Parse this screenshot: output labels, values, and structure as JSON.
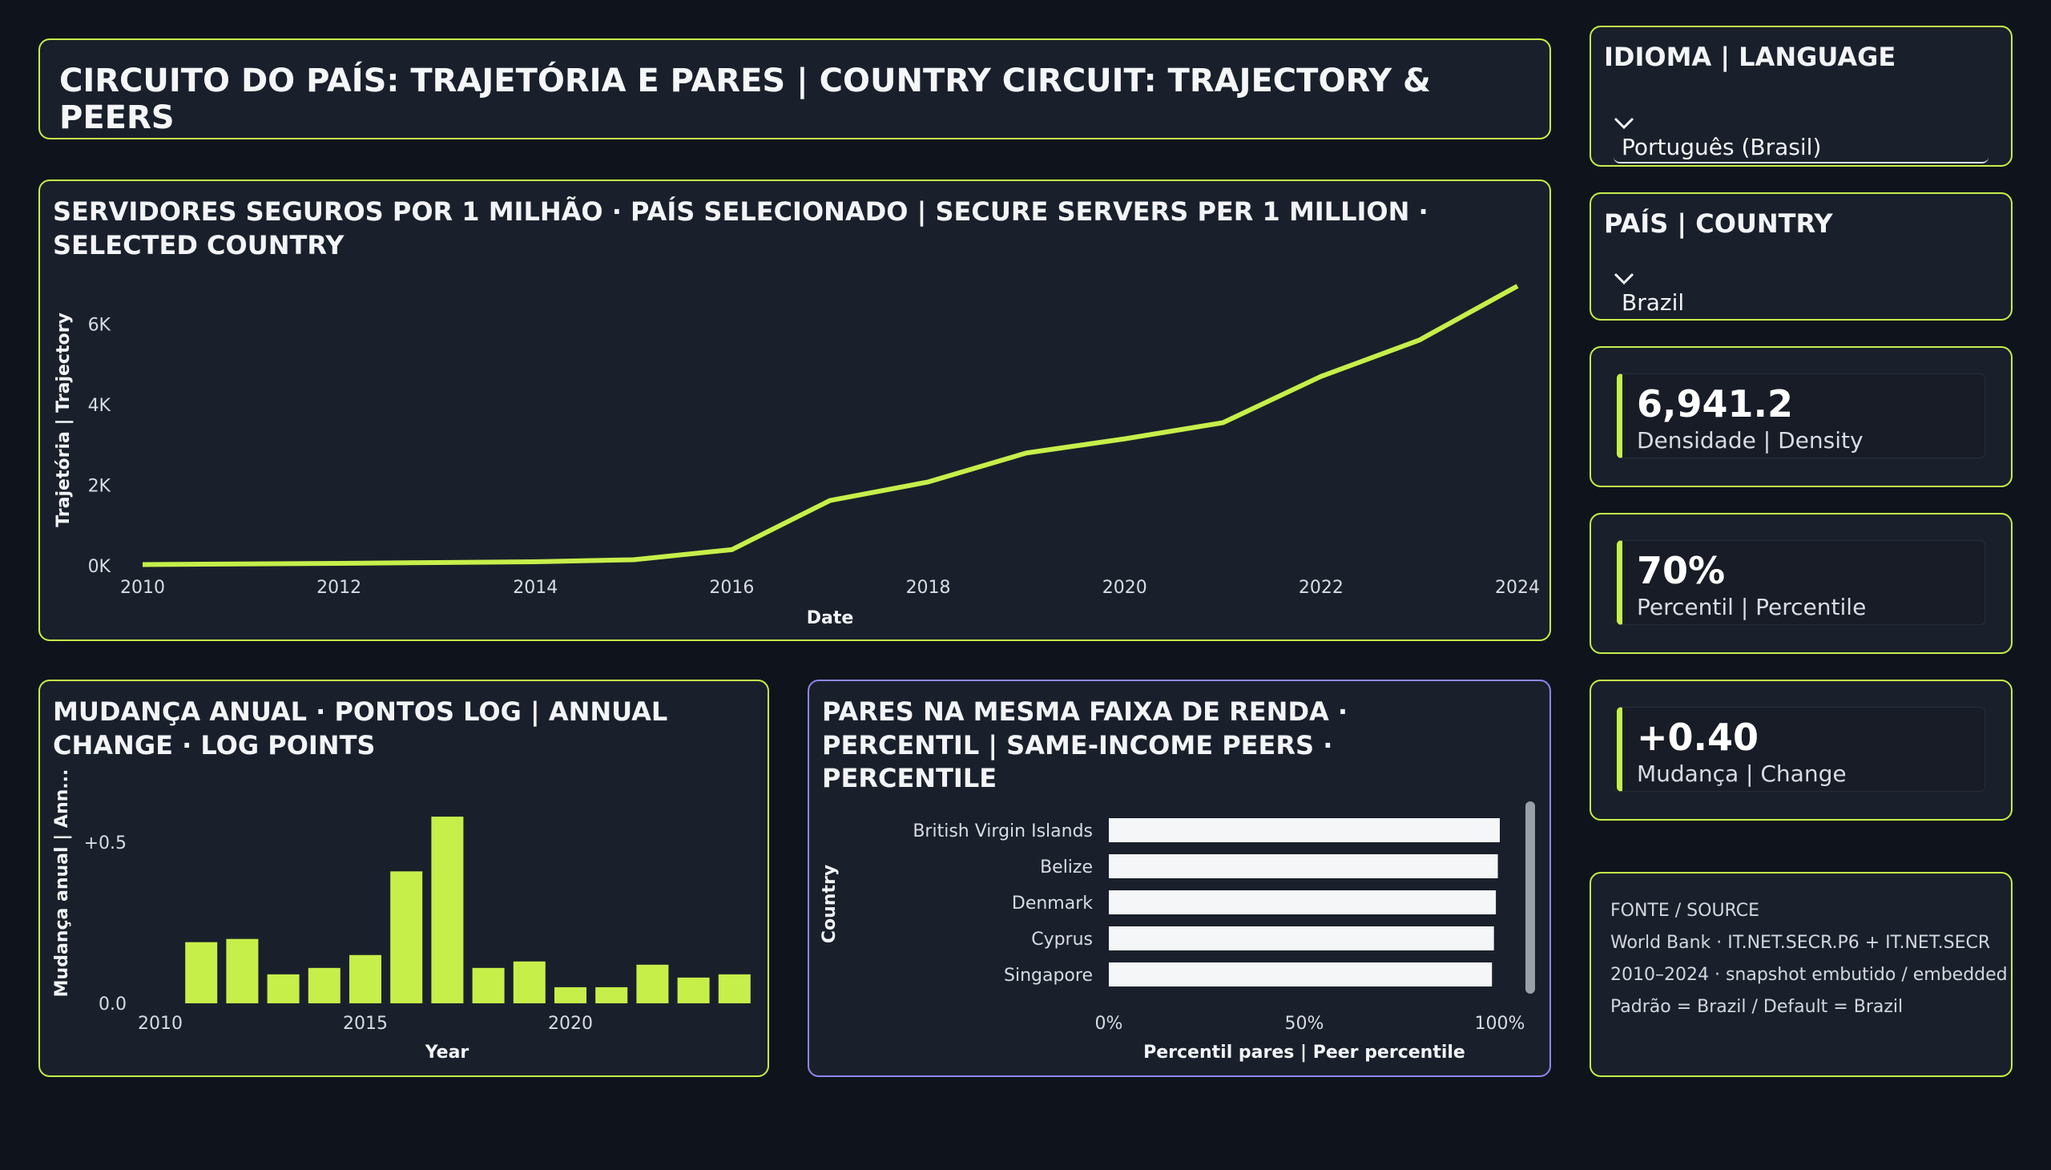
{
  "header": {
    "title": "CIRCUITO DO PAÍS: TRAJETÓRIA E PARES | COUNTRY CIRCUIT: TRAJECTORY & PEERS"
  },
  "language_slicer": {
    "label": "IDIOMA | LANGUAGE",
    "value": "Português (Brasil)"
  },
  "country_slicer": {
    "label": "PAÍS | COUNTRY",
    "value": "Brazil"
  },
  "kpis": [
    {
      "value": "6,941.2",
      "label": "Densidade | Density"
    },
    {
      "value": "70%",
      "label": "Percentil | Percentile"
    },
    {
      "value": "+0.40",
      "label": "Mudança | Change"
    }
  ],
  "source": {
    "heading": "FONTE / SOURCE",
    "line1": "World Bank · IT.NET.SECR.P6 + IT.NET.SECR",
    "line2": "2010–2024 · snapshot embutido / embedded",
    "line3": "Padrão = Brazil / Default = Brazil"
  },
  "colors": {
    "accent": "#c6ef4a",
    "peer_border": "#8f86ef",
    "background": "#0f141c",
    "card": "#1a202b",
    "bar_peer": "#f4f6f8"
  },
  "chart_data": [
    {
      "type": "line",
      "title": "SERVIDORES SEGUROS POR 1 MILHÃO · PAÍS SELECIONADO | SECURE SERVERS PER 1 MILLION · SELECTED COUNTRY",
      "xlabel": "Date",
      "ylabel": "Trajetória | Trajectory",
      "x": [
        2010,
        2011,
        2012,
        2013,
        2014,
        2015,
        2016,
        2017,
        2018,
        2019,
        2020,
        2021,
        2022,
        2023,
        2024
      ],
      "values": [
        30,
        45,
        60,
        80,
        100,
        150,
        400,
        1620,
        2080,
        2800,
        3150,
        3550,
        4700,
        5600,
        6941.2
      ],
      "xticks": [
        "2010",
        "2012",
        "2014",
        "2016",
        "2018",
        "2020",
        "2022",
        "2024"
      ],
      "yticks": [
        "0K",
        "2K",
        "4K",
        "6K"
      ],
      "ylim": [
        0,
        7200
      ],
      "grid": false
    },
    {
      "type": "bar",
      "title": "MUDANÇA ANUAL · PONTOS LOG | ANNUAL CHANGE · LOG POINTS",
      "xlabel": "Year",
      "ylabel": "Mudança anual | Ann...",
      "x": [
        2011,
        2012,
        2013,
        2014,
        2015,
        2016,
        2017,
        2018,
        2019,
        2020,
        2021,
        2022,
        2023,
        2024
      ],
      "values": [
        0.19,
        0.2,
        0.09,
        0.11,
        0.15,
        0.41,
        0.58,
        0.11,
        0.13,
        0.05,
        0.05,
        0.12,
        0.08,
        0.09
      ],
      "xticks": [
        "2010",
        "2015",
        "2020"
      ],
      "yticks": [
        "0.0",
        "+0.5"
      ],
      "ylim": [
        0,
        0.62
      ]
    },
    {
      "type": "bar",
      "orientation": "horizontal",
      "title": "PARES NA MESMA FAIXA DE RENDA · PERCENTIL | SAME-INCOME PEERS · PERCENTILE",
      "xlabel": "Percentil pares | Peer percentile",
      "ylabel": "Country",
      "categories": [
        "British Virgin Islands",
        "Belize",
        "Denmark",
        "Cyprus",
        "Singapore"
      ],
      "values": [
        1.0,
        0.995,
        0.99,
        0.985,
        0.98
      ],
      "xticks": [
        "0%",
        "50%",
        "100%"
      ],
      "xlim": [
        0,
        1
      ]
    }
  ]
}
